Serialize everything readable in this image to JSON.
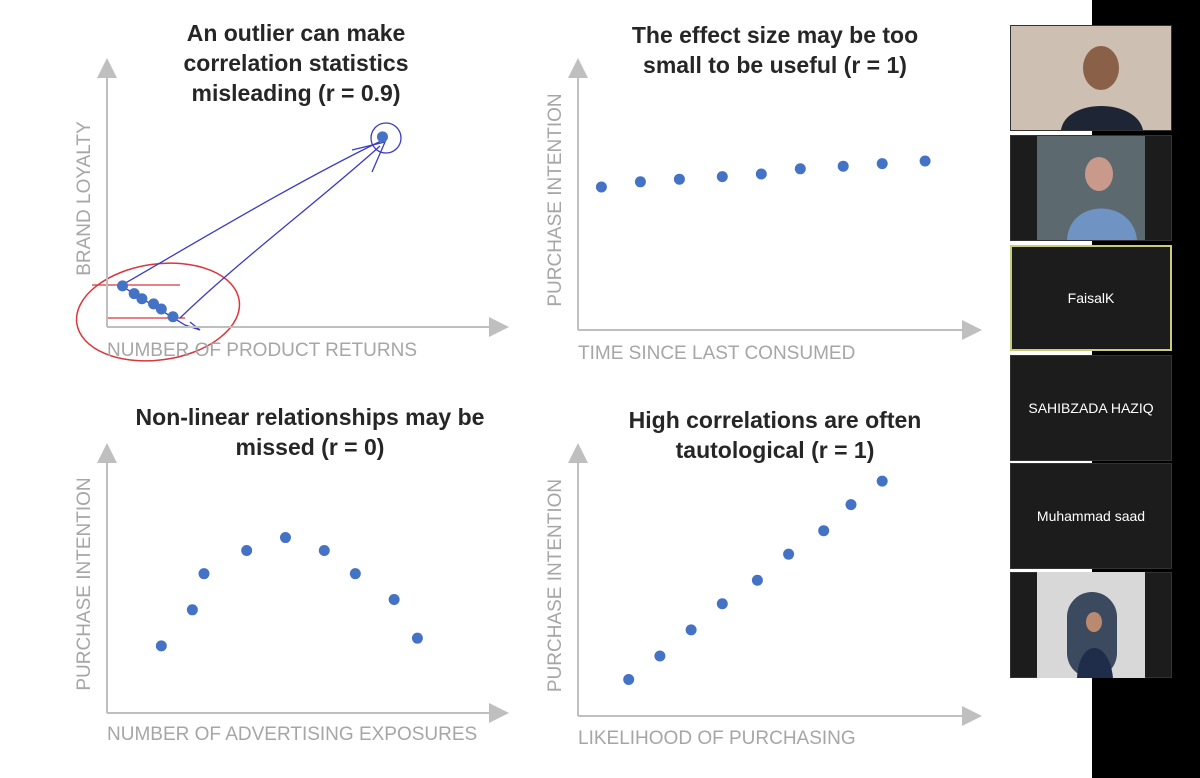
{
  "chart_data": [
    {
      "type": "scatter",
      "title": "An outlier can make correlation statistics misleading (r = 0.9)",
      "x_label": "NUMBER OF PRODUCT RETURNS",
      "y_label": "BRAND LOYALTY",
      "color": "#4472c4",
      "xlim": [
        0,
        100
      ],
      "ylim": [
        0,
        100
      ],
      "x": [
        4,
        7,
        9,
        12,
        14,
        17,
        71
      ],
      "y": [
        16,
        13,
        11,
        9,
        7,
        4,
        74
      ]
    },
    {
      "type": "scatter",
      "title": "The effect size may be too small to be useful (r = 1)",
      "x_label": "TIME SINCE LAST CONSUMED",
      "y_label": "PURCHASE INTENTION",
      "color": "#4472c4",
      "xlim": [
        0,
        100
      ],
      "ylim": [
        0,
        100
      ],
      "x": [
        6,
        16,
        26,
        37,
        47,
        57,
        68,
        78,
        89
      ],
      "y": [
        55,
        57,
        58,
        59,
        60,
        62,
        63,
        64,
        65
      ]
    },
    {
      "type": "scatter",
      "title": "Non-linear relationships may be missed (r = 0)",
      "x_label": "NUMBER OF ADVERTISING EXPOSURES",
      "y_label": "PURCHASE INTENTION",
      "color": "#4472c4",
      "xlim": [
        0,
        100
      ],
      "ylim": [
        0,
        100
      ],
      "x": [
        14,
        22,
        25,
        36,
        46,
        56,
        64,
        74,
        80
      ],
      "y": [
        26,
        40,
        54,
        63,
        68,
        63,
        54,
        44,
        29
      ]
    },
    {
      "type": "scatter",
      "title": "High correlations are often tautological (r = 1)",
      "x_label": "LIKELIHOOD OF PURCHASING",
      "y_label": "PURCHASE INTENTION",
      "color": "#4472c4",
      "xlim": [
        0,
        100
      ],
      "ylim": [
        0,
        100
      ],
      "x": [
        13,
        21,
        29,
        37,
        46,
        54,
        63,
        70,
        78
      ],
      "y": [
        14,
        23,
        33,
        43,
        52,
        62,
        71,
        81,
        90
      ]
    }
  ],
  "participants": {
    "names": [
      "FaisalK",
      "SAHIBZADA HAZIQ",
      "Muhammad saad"
    ]
  }
}
